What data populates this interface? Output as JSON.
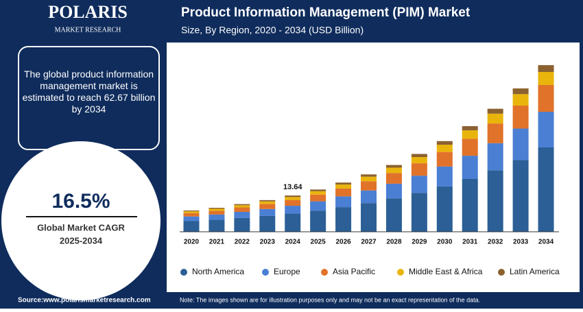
{
  "page": {
    "logo": "POLARIS",
    "logo_sub": "MARKET RESEARCH",
    "summary": "The global product information management market is estimated to reach 62.67 billion by 2034",
    "cagr": "16.5%",
    "cagr_label": "Global Market CAGR",
    "cagr_period": "2025-2034",
    "source": "Source:www.polarismarketresearch.com",
    "note": "Note: The images shown are for illustration purposes only and may not be an exact representation of the data."
  },
  "chart_data": {
    "type": "stacked-bar",
    "title": "Product Information Management (PIM) Market",
    "subtitle": "Size, By Region, 2020 - 2034 (USD Billion)",
    "categories": [
      "2020",
      "2021",
      "2022",
      "2023",
      "2024",
      "2025",
      "2026",
      "2027",
      "2028",
      "2029",
      "2030",
      "2031",
      "2032",
      "2033",
      "2034"
    ],
    "series": [
      {
        "name": "North America",
        "color": "#2b5f96",
        "values": [
          4.0,
          4.5,
          5.2,
          5.95,
          6.82,
          7.95,
          9.26,
          10.79,
          12.56,
          14.64,
          17.05,
          19.86,
          23.14,
          26.96,
          31.72
        ]
      },
      {
        "name": "Europe",
        "color": "#4a7fd4",
        "values": [
          1.76,
          1.98,
          2.29,
          2.62,
          2.97,
          3.5,
          4.07,
          4.75,
          5.53,
          6.44,
          7.5,
          8.74,
          10.18,
          11.86,
          13.41
        ]
      },
      {
        "name": "Asia Pacific",
        "color": "#e0722a",
        "values": [
          1.28,
          1.44,
          1.66,
          1.9,
          2.18,
          2.54,
          2.96,
          3.45,
          4.02,
          4.68,
          5.46,
          6.36,
          7.4,
          8.63,
          10.06
        ]
      },
      {
        "name": "Middle East & Africa",
        "color": "#e9b50c",
        "values": [
          0.64,
          0.72,
          0.83,
          0.95,
          1.09,
          1.27,
          1.48,
          1.73,
          2.01,
          2.34,
          2.73,
          3.18,
          3.7,
          4.31,
          4.9
        ]
      },
      {
        "name": "Latin America",
        "color": "#8c6130",
        "values": [
          0.32,
          0.36,
          0.42,
          0.48,
          0.58,
          0.63,
          0.74,
          0.86,
          1.0,
          1.17,
          1.36,
          1.59,
          1.85,
          2.16,
          2.58
        ]
      }
    ],
    "total_labels": [
      null,
      null,
      null,
      null,
      13.64,
      null,
      null,
      null,
      null,
      null,
      null,
      null,
      null,
      null,
      null
    ],
    "grid": false
  }
}
